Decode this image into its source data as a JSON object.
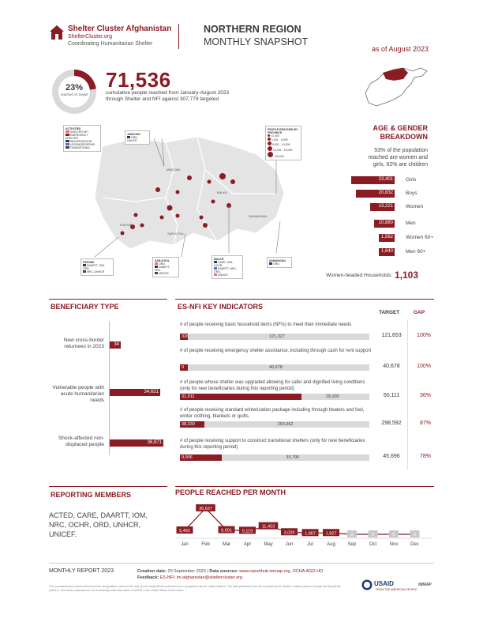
{
  "header": {
    "org_name": "Shelter Cluster Afghanistan",
    "org_site": "ShelterCluster.org",
    "org_tagline": "Coordinating Humanitarian Shelter",
    "title_line1": "NORTHERN REGION",
    "title_line2": "MONTHLY SNAPSHOT",
    "as_of": "as of August 2023"
  },
  "summary": {
    "percent": "23%",
    "percent_label": "reached vs target",
    "percent_value": 23,
    "total_reached": "71,536",
    "description": "cumulative people reached from January-August 2023 through Shelter and NFI against 307,779 targeted"
  },
  "map": {
    "activities_title": "ACTIVITIES",
    "activities": [
      "SHELTER-NFI",
      "EMERGENCY SHELTER",
      "WINTERIZATION",
      "UPGRADE/REPAIR",
      "TRANSITIONAL"
    ],
    "people_title": "PEOPLE REACHED BY PROVINCE",
    "people_bins": [
      "<1,000",
      "1,001 - 5,000",
      "5,001 - 10,000",
      "10,001 - 20,000",
      ">20,000"
    ],
    "provinces": [
      "JAWZJAN",
      "BALKH",
      "SAMANGAN",
      "SAR-E-PUL",
      "FARYAB"
    ],
    "box_jawzjan_title": "JAWZJAN",
    "box_jawzjan_items": [
      "ORD, UNHCR"
    ],
    "box_faryab_title": "FARYAB",
    "box_faryab_items": [
      "DAARTT, IOM, ORD",
      "NRC, UNHCR"
    ],
    "box_sarepul_title": "SAR-E-PUL",
    "box_sarepul_items": [
      "ORD",
      "DAARTT, NRC",
      "UNHCR"
    ],
    "box_balkh_title": "BALKH",
    "box_balkh_items": [
      "CARE, IOM, OCHR,",
      "DAARTT, NRC, ORD,",
      "UNHCR"
    ],
    "box_samangan_title": "SAMANGAN",
    "box_samangan_items": [
      "ORD"
    ]
  },
  "age_gender": {
    "title_line1": "AGE & GENDER",
    "title_line2": "BREAKDOWN",
    "subtitle": "53% of the population reached are women and girls, 62% are children",
    "rows": [
      {
        "label": "Girls",
        "value": 23401,
        "display": "23,401"
      },
      {
        "label": "Boys",
        "value": 20832,
        "display": "20,832"
      },
      {
        "label": "Women",
        "value": 13221,
        "display": "13,221"
      },
      {
        "label": "Men",
        "value": 10880,
        "display": "10,880"
      },
      {
        "label": "Women 60+",
        "value": 1562,
        "display": "1,562"
      },
      {
        "label": "Men 60+",
        "value": 1640,
        "display": "1,640"
      }
    ],
    "women_headed_label": "Women-headed Households:",
    "women_headed_value": "1,103"
  },
  "beneficiary_type": {
    "title": "BENEFICIARY TYPE",
    "items": [
      {
        "label": "New cross-border returnees in 2023",
        "value": 34,
        "display": "34"
      },
      {
        "label": "Vulnerable people with acute humanitarian needs",
        "value": 34631,
        "display": "34,631"
      },
      {
        "label": "Shock-affected non-displaced people",
        "value": 36871,
        "display": "36,871"
      }
    ]
  },
  "indicators": {
    "title": "ES-NFI KEY INDICATORS",
    "target_header": "TARGET",
    "gap_header": "GAP",
    "items": [
      {
        "question": "# of people receiving basic household items (NFIs) to meet their immediate needs",
        "reached": 326,
        "reached_display": "326",
        "gap_display": "121,327",
        "target": "121,653",
        "gap_pct": "100%",
        "fraction": 0.003
      },
      {
        "question": "# of people receiving emergency shelter assistance, including through cash for rent support",
        "reached": 0,
        "reached_display": "0",
        "gap_display": "40,678",
        "target": "40,678",
        "gap_pct": "100%",
        "fraction": 0.0
      },
      {
        "question": "# of people whose shelter was upgraded allowing for safer and dignified living conditions (only for new beneficiaries during this reporting period)",
        "reached": 31911,
        "reached_display": "31,911",
        "gap_display": "18,200",
        "target": "50,111",
        "gap_pct": "36%",
        "fraction": 0.64
      },
      {
        "question": "# of people receiving standard winterization package including through heaters and fuel, winter clothing, blankets or quilts.",
        "reached": 38230,
        "reached_display": "38,230",
        "gap_display": "260,362",
        "target": "298,592",
        "gap_pct": "87%",
        "fraction": 0.13
      },
      {
        "question": "# of people receiving support to construct transitional shelters (only for new beneficiaries during this reporting period)",
        "reached": 9906,
        "reached_display": "9,906",
        "gap_display": "35,790",
        "target": "45,696",
        "gap_pct": "78%",
        "fraction": 0.22
      }
    ]
  },
  "reporting_members": {
    "title": "REPORTING MEMBERS",
    "text": "ACTED, CARE, DAARTT, IOM, NRC, OCHR, ORD, UNHCR, UNICEF."
  },
  "chart_data": {
    "type": "line",
    "title": "PEOPLE REACHED PER MONTH",
    "categories": [
      "Jan",
      "Feb",
      "Mar",
      "Apr",
      "May",
      "Jun",
      "Jul",
      "Aug",
      "Sep",
      "Oct",
      "Nov",
      "Dec"
    ],
    "values": [
      5492,
      36637,
      6001,
      5119,
      11453,
      3020,
      1887,
      1927,
      0,
      0,
      0,
      0
    ],
    "labels": [
      "5,492",
      "36,637",
      "6,001",
      "5,119",
      "11,453",
      "3,020",
      "1,887",
      "1,927",
      "0",
      "0",
      "0",
      "0"
    ],
    "xlabel": "",
    "ylabel": "",
    "ylim": [
      0,
      40000
    ]
  },
  "footer": {
    "report": "MONTHLY REPORT 2023",
    "created_label": "Creation date:",
    "created_value": "20 September 2023",
    "sources_label": "Data sources:",
    "sources_value": "www.reporthub.immap.org, OCHA AGO HO",
    "feedback_label": "Feedback:",
    "feedback_value": "ES-NFI: im.afghanistan@sheltercluster.org",
    "fine_print": "The boundaries and names shown and the designations used on this map do not imply official endorsement or acceptance by the United Nations. The data presented here are provided by the Shelter Cluster partners through the ReportHub platform. The views expressed do not necessarily reflect the views of USAID or the United States Government.",
    "usaid": "USAID",
    "usaid_sub": "FROM THE AMERICAN PEOPLE",
    "immap": "iMMAP"
  },
  "colors": {
    "brand": "#8a1c23",
    "track": "#d9d9d9",
    "text": "#3a3a3a"
  }
}
